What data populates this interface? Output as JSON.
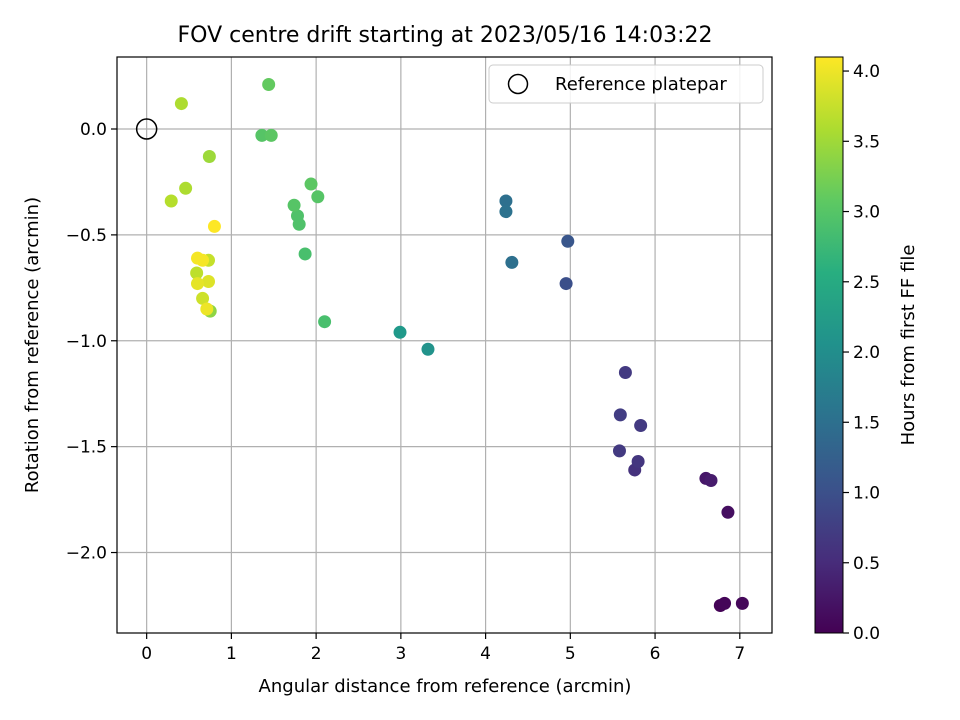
{
  "chart_data": {
    "type": "scatter",
    "title": "FOV centre drift starting at 2023/05/16 14:03:22",
    "xlabel": "Angular distance from reference (arcmin)",
    "ylabel": "Rotation from reference (arcmin)",
    "xlim": [
      -0.35,
      7.38
    ],
    "ylim": [
      -2.38,
      0.34
    ],
    "xticks": [
      "0",
      "1",
      "2",
      "3",
      "4",
      "5",
      "6",
      "7"
    ],
    "xtick_values": [
      0,
      1,
      2,
      3,
      4,
      5,
      6,
      7
    ],
    "yticks": [
      "0.0",
      "−0.5",
      "−1.0",
      "−1.5",
      "−2.0"
    ],
    "ytick_values": [
      0.0,
      -0.5,
      -1.0,
      -1.5,
      -2.0
    ],
    "grid": true,
    "legend": {
      "placement": "top-right",
      "entries": [
        "Reference platepar"
      ]
    },
    "reference_point": {
      "x": 0.0,
      "y": 0.0,
      "label": "Reference platepar"
    },
    "colorbar": {
      "label": "Hours from first FF file",
      "range": [
        0.0,
        4.1
      ],
      "colormap": "viridis",
      "ticks": [
        "0.0",
        "0.5",
        "1.0",
        "1.5",
        "2.0",
        "2.5",
        "3.0",
        "3.5",
        "4.0"
      ],
      "tick_values": [
        0.0,
        0.5,
        1.0,
        1.5,
        2.0,
        2.5,
        3.0,
        3.5,
        4.0
      ]
    },
    "points": [
      {
        "x": 6.77,
        "y": -2.25,
        "c": 0.02
      },
      {
        "x": 6.82,
        "y": -2.24,
        "c": 0.05
      },
      {
        "x": 7.03,
        "y": -2.24,
        "c": 0.08
      },
      {
        "x": 6.86,
        "y": -1.81,
        "c": 0.15
      },
      {
        "x": 6.6,
        "y": -1.65,
        "c": 0.25
      },
      {
        "x": 6.66,
        "y": -1.66,
        "c": 0.3
      },
      {
        "x": 5.76,
        "y": -1.61,
        "c": 0.6
      },
      {
        "x": 5.8,
        "y": -1.57,
        "c": 0.65
      },
      {
        "x": 5.58,
        "y": -1.52,
        "c": 0.7
      },
      {
        "x": 5.83,
        "y": -1.4,
        "c": 0.7
      },
      {
        "x": 5.59,
        "y": -1.35,
        "c": 0.75
      },
      {
        "x": 5.65,
        "y": -1.15,
        "c": 0.7
      },
      {
        "x": 4.95,
        "y": -0.73,
        "c": 1.0
      },
      {
        "x": 4.97,
        "y": -0.53,
        "c": 1.1
      },
      {
        "x": 4.31,
        "y": -0.63,
        "c": 1.5
      },
      {
        "x": 4.24,
        "y": -0.34,
        "c": 1.5
      },
      {
        "x": 4.24,
        "y": -0.39,
        "c": 1.55
      },
      {
        "x": 3.32,
        "y": -1.04,
        "c": 2.1
      },
      {
        "x": 2.99,
        "y": -0.96,
        "c": 2.2
      },
      {
        "x": 2.1,
        "y": -0.91,
        "c": 2.9
      },
      {
        "x": 1.87,
        "y": -0.59,
        "c": 2.9
      },
      {
        "x": 1.8,
        "y": -0.45,
        "c": 2.95
      },
      {
        "x": 1.78,
        "y": -0.41,
        "c": 2.95
      },
      {
        "x": 1.74,
        "y": -0.36,
        "c": 3.0
      },
      {
        "x": 2.02,
        "y": -0.32,
        "c": 3.0
      },
      {
        "x": 1.94,
        "y": -0.26,
        "c": 3.05
      },
      {
        "x": 1.36,
        "y": -0.03,
        "c": 3.0
      },
      {
        "x": 1.47,
        "y": -0.03,
        "c": 3.05
      },
      {
        "x": 1.44,
        "y": 0.21,
        "c": 3.1
      },
      {
        "x": 0.75,
        "y": -0.86,
        "c": 3.4
      },
      {
        "x": 0.74,
        "y": -0.13,
        "c": 3.5
      },
      {
        "x": 0.46,
        "y": -0.28,
        "c": 3.6
      },
      {
        "x": 0.41,
        "y": 0.12,
        "c": 3.6
      },
      {
        "x": 0.29,
        "y": -0.34,
        "c": 3.65
      },
      {
        "x": 0.59,
        "y": -0.68,
        "c": 3.7
      },
      {
        "x": 0.73,
        "y": -0.62,
        "c": 3.75
      },
      {
        "x": 0.66,
        "y": -0.8,
        "c": 3.8
      },
      {
        "x": 0.73,
        "y": -0.72,
        "c": 3.9
      },
      {
        "x": 0.6,
        "y": -0.73,
        "c": 3.95
      },
      {
        "x": 0.71,
        "y": -0.85,
        "c": 4.0
      },
      {
        "x": 0.6,
        "y": -0.61,
        "c": 4.05
      },
      {
        "x": 0.66,
        "y": -0.62,
        "c": 4.05
      },
      {
        "x": 0.8,
        "y": -0.46,
        "c": 4.1
      }
    ]
  }
}
